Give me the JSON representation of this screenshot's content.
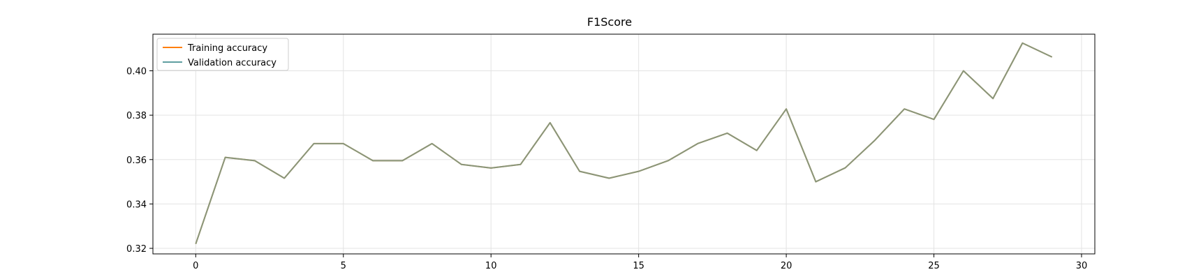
{
  "chart_data": {
    "type": "line",
    "title": "F1Score",
    "xlabel": "",
    "ylabel": "",
    "xlim": [
      -1.45,
      30.45
    ],
    "ylim": [
      0.3175,
      0.4165
    ],
    "xticks": [
      0,
      5,
      10,
      15,
      20,
      25,
      30
    ],
    "yticks": [
      0.32,
      0.34,
      0.36,
      0.38,
      0.4
    ],
    "xtick_labels": [
      "0",
      "5",
      "10",
      "15",
      "20",
      "25",
      "30"
    ],
    "ytick_labels": [
      "0.32",
      "0.34",
      "0.36",
      "0.38",
      "0.40"
    ],
    "grid": true,
    "legend_position": "upper-left",
    "x": [
      0,
      1,
      2,
      3,
      4,
      5,
      6,
      7,
      8,
      9,
      10,
      11,
      12,
      13,
      14,
      15,
      16,
      17,
      18,
      19,
      20,
      21,
      22,
      23,
      24,
      25,
      26,
      27,
      28,
      29
    ],
    "series": [
      {
        "name": "Training accuracy",
        "color": "#ff7f0e",
        "values": [
          0.322,
          0.361,
          0.3595,
          0.3516,
          0.3672,
          0.3672,
          0.3595,
          0.3595,
          0.3672,
          0.3578,
          0.3562,
          0.3578,
          0.3766,
          0.3547,
          0.3516,
          0.3547,
          0.3595,
          0.3672,
          0.3719,
          0.3641,
          0.3828,
          0.35,
          0.3563,
          0.3687,
          0.3828,
          0.3781,
          0.4,
          0.3875,
          0.4125,
          0.4062
        ]
      },
      {
        "name": "Validation accuracy",
        "color": "#5f9ea0",
        "values": [
          0.322,
          0.361,
          0.3595,
          0.3516,
          0.3672,
          0.3672,
          0.3595,
          0.3595,
          0.3672,
          0.3578,
          0.3562,
          0.3578,
          0.3766,
          0.3547,
          0.3516,
          0.3547,
          0.3595,
          0.3672,
          0.3719,
          0.3641,
          0.3828,
          0.35,
          0.3563,
          0.3687,
          0.3828,
          0.3781,
          0.4,
          0.3875,
          0.4125,
          0.4062
        ]
      }
    ]
  }
}
